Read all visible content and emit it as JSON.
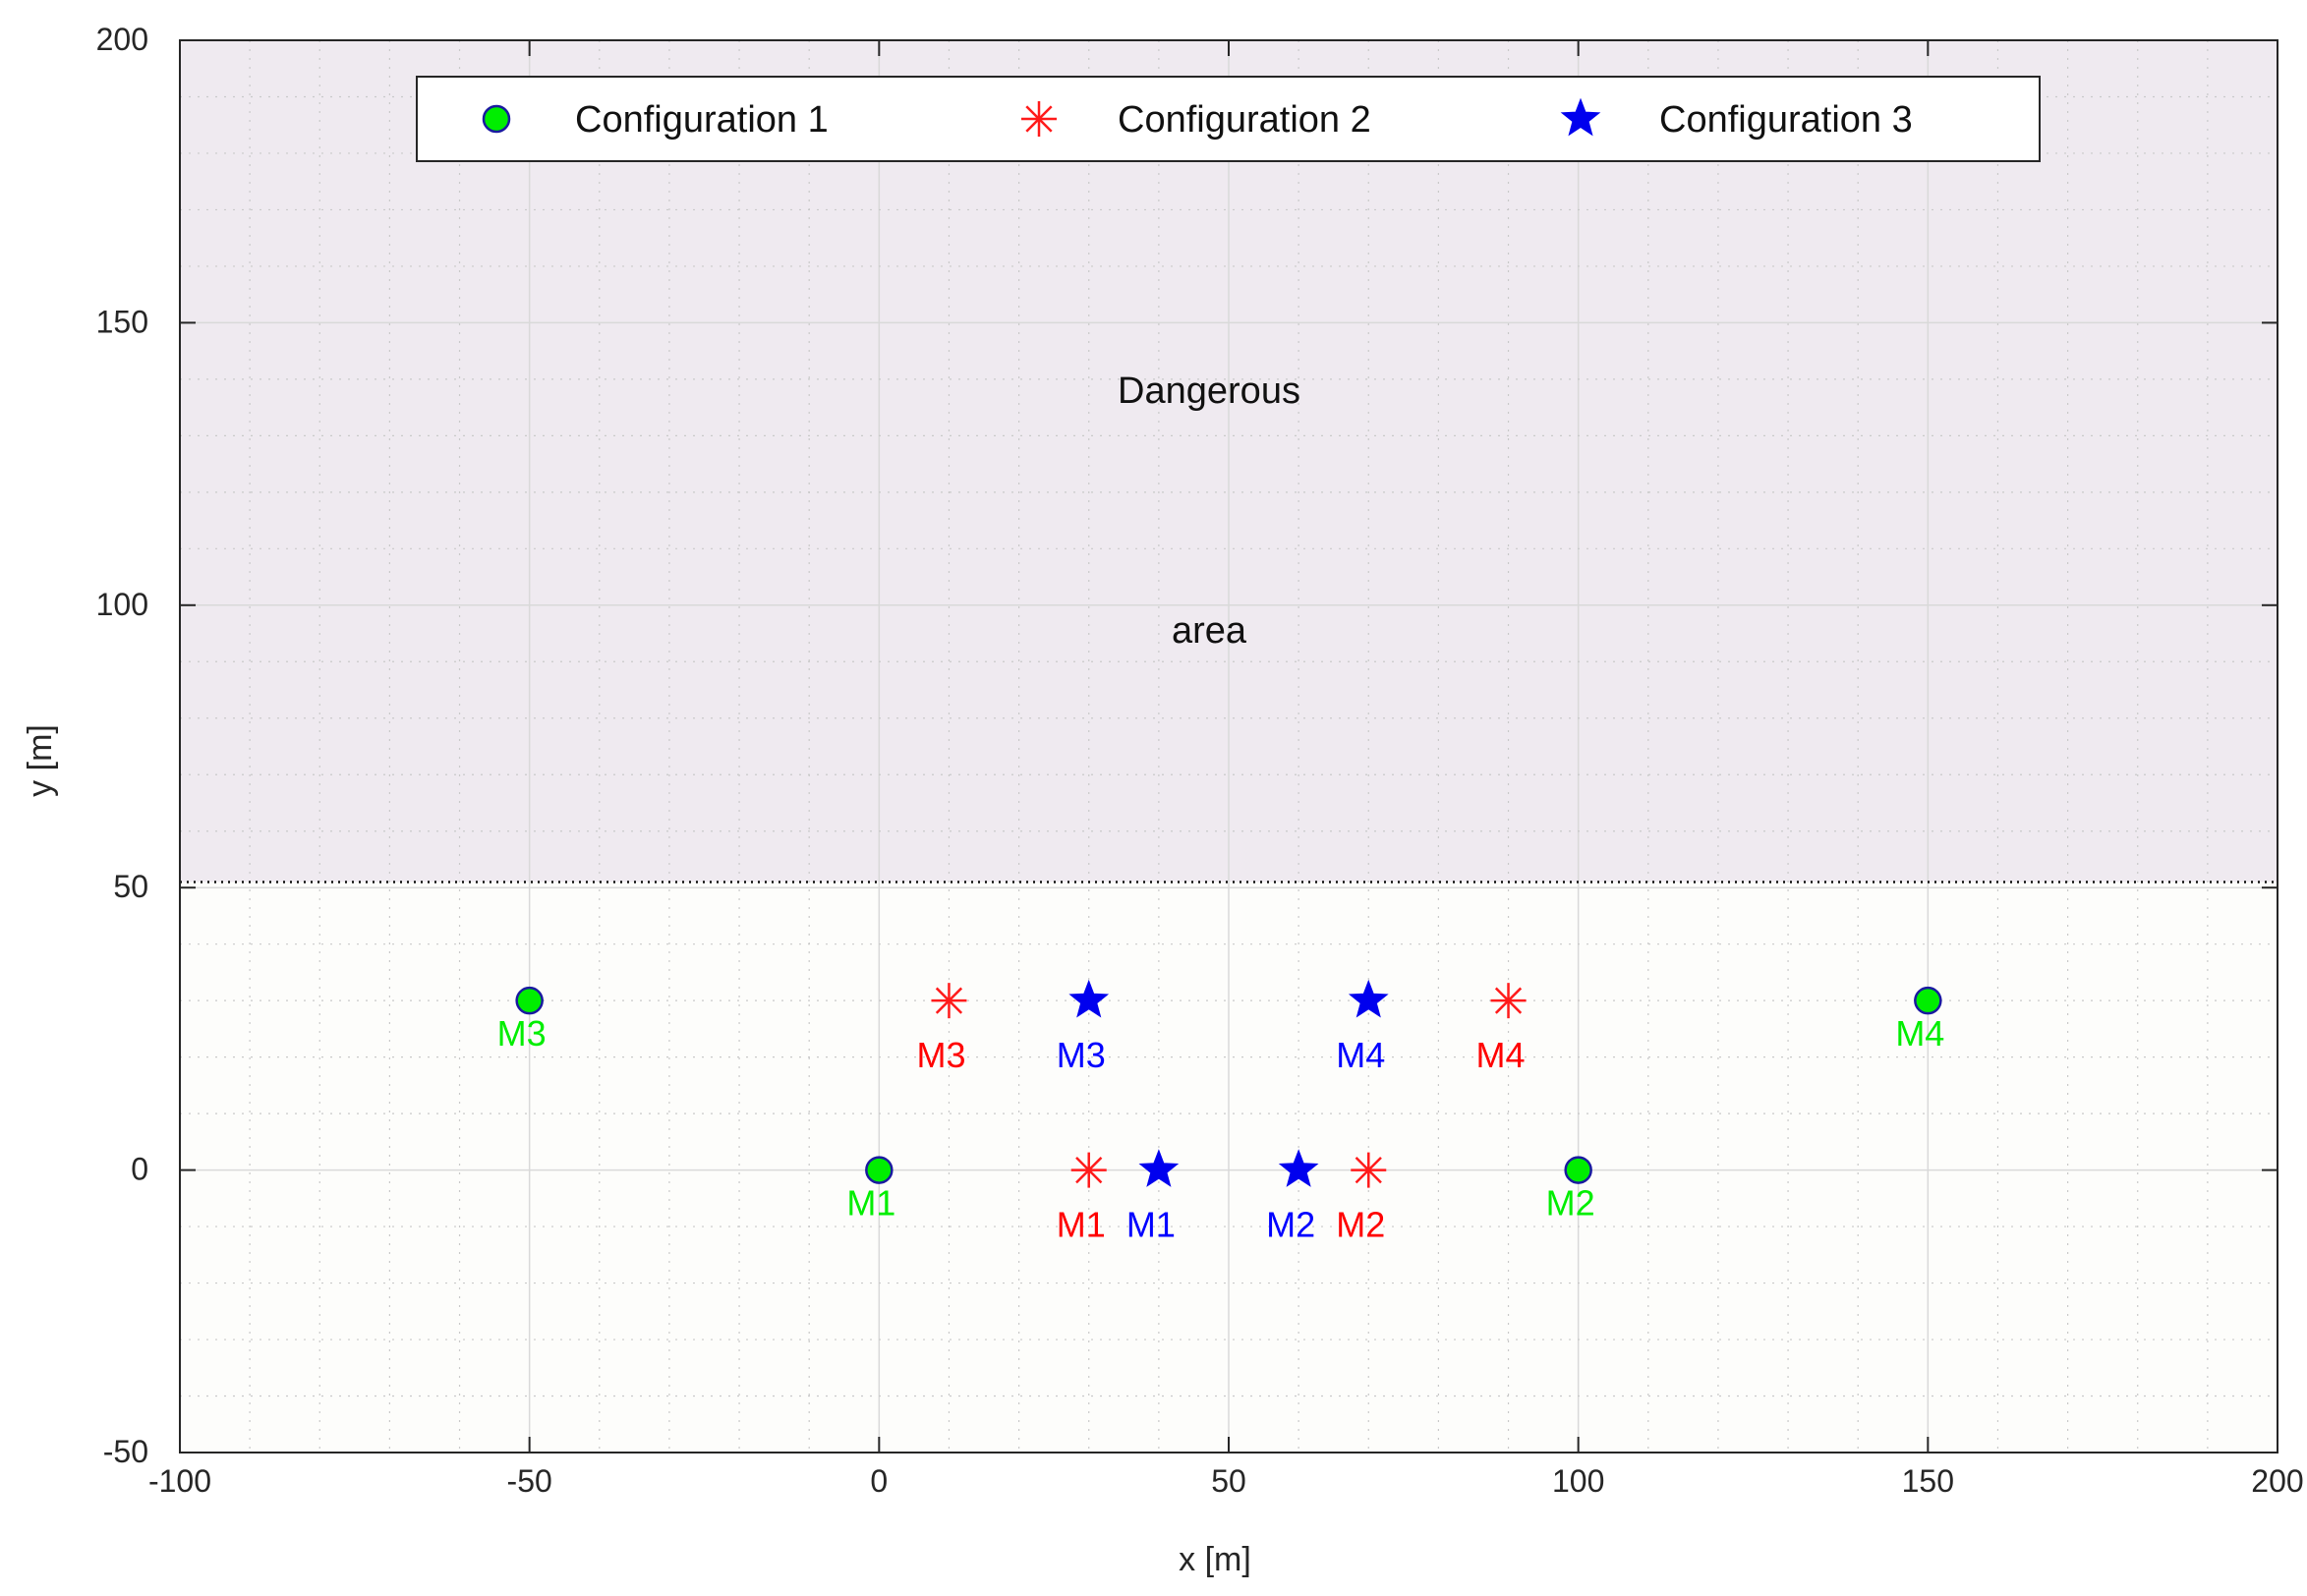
{
  "chart_data": {
    "type": "scatter",
    "xlabel": "x [m]",
    "ylabel": "y [m]",
    "xlim": [
      -100,
      200
    ],
    "ylim": [
      -50,
      200
    ],
    "xticks": [
      -100,
      -50,
      0,
      50,
      100,
      150,
      200
    ],
    "yticks": [
      -50,
      0,
      50,
      100,
      150,
      200
    ],
    "grid": true,
    "minor_grid": true,
    "shaded_region": {
      "label_line1": "Dangerous",
      "label_line2": "area",
      "y_from": 51,
      "y_to": 200,
      "color": "#efeaf0",
      "boundary_style": "dotted"
    },
    "legend_position": "top",
    "series": [
      {
        "name": "Configuration 1",
        "marker": "circle",
        "color": "#00ee00",
        "edge_color": "#1a1aa0",
        "label_color": "#00ee00",
        "points": [
          {
            "x": 0,
            "y": 0,
            "label": "M1"
          },
          {
            "x": 100,
            "y": 0,
            "label": "M2"
          },
          {
            "x": -50,
            "y": 30,
            "label": "M3"
          },
          {
            "x": 150,
            "y": 30,
            "label": "M4"
          }
        ]
      },
      {
        "name": "Configuration 2",
        "marker": "asterisk",
        "color": "#ff1a1a",
        "label_color": "#ff0000",
        "points": [
          {
            "x": 30,
            "y": 0,
            "label": "M1"
          },
          {
            "x": 70,
            "y": 0,
            "label": "M2"
          },
          {
            "x": 10,
            "y": 30,
            "label": "M3"
          },
          {
            "x": 90,
            "y": 30,
            "label": "M4"
          }
        ]
      },
      {
        "name": "Configuration 3",
        "marker": "star",
        "color": "#0000ee",
        "label_color": "#0000ff",
        "points": [
          {
            "x": 40,
            "y": 0,
            "label": "M1"
          },
          {
            "x": 60,
            "y": 0,
            "label": "M2"
          },
          {
            "x": 30,
            "y": 30,
            "label": "M3"
          },
          {
            "x": 70,
            "y": 30,
            "label": "M4"
          }
        ]
      }
    ]
  }
}
